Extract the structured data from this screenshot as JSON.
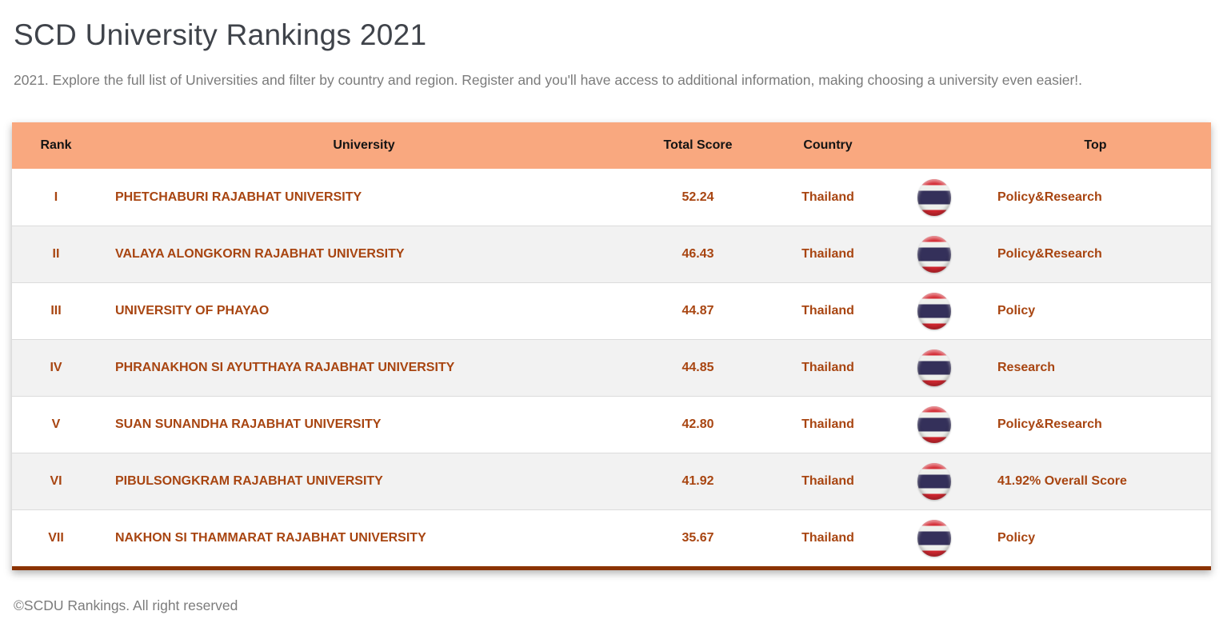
{
  "page": {
    "title": "SCD University Rankings 2021",
    "subtitle": "2021. Explore the full list of Universities and filter by country and region. Register and you'll have access to additional information, making choosing a university even easier!.",
    "footer": "©SCDU Rankings. All right reserved"
  },
  "colors": {
    "header_bg": "#f9a87f",
    "header_text": "#141414",
    "row_text": "#a84511",
    "row_alt_bg": "#f2f2f2",
    "row_separator": "#dcdcdc",
    "table_bottom_border": "#8b3302",
    "title_text": "#3f434a",
    "muted_text": "#7b7b7b",
    "flag_red": "#d32730",
    "flag_white": "#eef0ec",
    "flag_blue": "#34305a"
  },
  "table": {
    "columns": [
      "Rank",
      "University",
      "Total Score",
      "Country",
      "",
      "Top"
    ],
    "rows": [
      {
        "rank": "I",
        "university": "PHETCHABURI RAJABHAT UNIVERSITY",
        "total_score": "52.24",
        "country": "Thailand",
        "flag_icon": "thailand-flag-icon",
        "top": "Policy&Research"
      },
      {
        "rank": "II",
        "university": "VALAYA ALONGKORN RAJABHAT UNIVERSITY",
        "total_score": "46.43",
        "country": "Thailand",
        "flag_icon": "thailand-flag-icon",
        "top": "Policy&Research"
      },
      {
        "rank": "III",
        "university": "UNIVERSITY OF PHAYAO",
        "total_score": "44.87",
        "country": "Thailand",
        "flag_icon": "thailand-flag-icon",
        "top": "Policy"
      },
      {
        "rank": "IV",
        "university": "PHRANAKHON SI AYUTTHAYA RAJABHAT UNIVERSITY",
        "total_score": "44.85",
        "country": "Thailand",
        "flag_icon": "thailand-flag-icon",
        "top": "Research"
      },
      {
        "rank": "V",
        "university": "SUAN SUNANDHA RAJABHAT UNIVERSITY",
        "total_score": "42.80",
        "country": "Thailand",
        "flag_icon": "thailand-flag-icon",
        "top": "Policy&Research"
      },
      {
        "rank": "VI",
        "university": "PIBULSONGKRAM RAJABHAT UNIVERSITY",
        "total_score": "41.92",
        "country": "Thailand",
        "flag_icon": "thailand-flag-icon",
        "top": "41.92% Overall Score"
      },
      {
        "rank": "VII",
        "university": "NAKHON SI THAMMARAT RAJABHAT UNIVERSITY",
        "total_score": "35.67",
        "country": "Thailand",
        "flag_icon": "thailand-flag-icon",
        "top": "Policy"
      }
    ]
  }
}
